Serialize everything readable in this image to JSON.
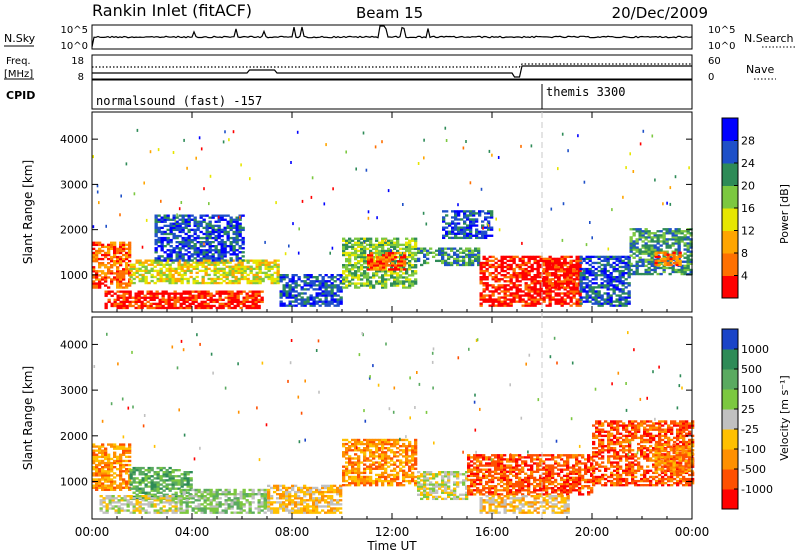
{
  "header": {
    "station": "Rankin Inlet (fitACF)",
    "beam": "Beam 15",
    "date": "20/Dec/2009"
  },
  "noise_panel": {
    "left_label": "N.Sky",
    "right_label": "N.Search",
    "left_ticks": [
      "10^5",
      "10^0"
    ],
    "right_ticks": [
      "10^5",
      "10^0"
    ]
  },
  "freq_panel": {
    "left_label_line1": "Freq.",
    "left_label_line2": "[MHz]",
    "right_label": "Nave",
    "left_ticks": [
      "18",
      "8"
    ],
    "right_ticks": [
      "60",
      "0"
    ]
  },
  "cpid_panel": {
    "label": "CPID",
    "program_1": "normalsound (fast) -157",
    "program_2": "themis 3300"
  },
  "power_colorbar": {
    "label": "Power [dB]",
    "ticks": [
      "28",
      "24",
      "20",
      "16",
      "12",
      "8",
      "4"
    ],
    "colors": [
      "#0000ff",
      "#1e50c8",
      "#2e8b57",
      "#7cc840",
      "#e6e600",
      "#ffa500",
      "#ff7000",
      "#ff0000"
    ]
  },
  "velocity_colorbar": {
    "label": "Velocity [m s⁻¹]",
    "ticks": [
      "1000",
      "500",
      "100",
      "25",
      "-25",
      "-100",
      "-500",
      "-1000"
    ],
    "colors": [
      "#1a44c8",
      "#2e8b57",
      "#5aaa60",
      "#7cc840",
      "#c0c0c0",
      "#ffc000",
      "#ff9000",
      "#ff5000",
      "#ff0000"
    ]
  },
  "chart_data": [
    {
      "type": "heatmap",
      "name": "power",
      "ylabel": "Slant Range [km]",
      "x_ticks": [
        "00:00",
        "04:00",
        "08:00",
        "12:00",
        "16:00",
        "20:00",
        "00:00"
      ],
      "y_ticks": [
        "1000",
        "2000",
        "3000",
        "4000"
      ],
      "xlim": [
        0,
        24
      ],
      "ylim": [
        180,
        4600
      ],
      "regions": [
        {
          "t0": 0.0,
          "t1": 1.5,
          "r0": 700,
          "r1": 1700,
          "level": 6
        },
        {
          "t0": 1.5,
          "t1": 7.5,
          "r0": 800,
          "r1": 1300,
          "level": 4
        },
        {
          "t0": 0.5,
          "t1": 6.8,
          "r0": 250,
          "r1": 650,
          "level": 7
        },
        {
          "t0": 2.5,
          "t1": 6.0,
          "r0": 1300,
          "r1": 2300,
          "level": 1
        },
        {
          "t0": 7.5,
          "t1": 10.0,
          "r0": 300,
          "r1": 1000,
          "level": 1
        },
        {
          "t0": 10.0,
          "t1": 13.0,
          "r0": 700,
          "r1": 1800,
          "level": 3
        },
        {
          "t0": 11.0,
          "t1": 12.5,
          "r0": 1100,
          "r1": 1500,
          "level": 6
        },
        {
          "t0": 13.0,
          "t1": 15.5,
          "r0": 1200,
          "r1": 1600,
          "level": 2
        },
        {
          "t0": 14.0,
          "t1": 16.0,
          "r0": 1800,
          "r1": 2400,
          "level": 1
        },
        {
          "t0": 15.5,
          "t1": 19.5,
          "r0": 300,
          "r1": 1400,
          "level": 7
        },
        {
          "t0": 18.0,
          "t1": 19.5,
          "r0": 700,
          "r1": 1300,
          "level": 7
        },
        {
          "t0": 19.5,
          "t1": 21.5,
          "r0": 300,
          "r1": 1400,
          "level": 1
        },
        {
          "t0": 21.5,
          "t1": 24.0,
          "r0": 1000,
          "r1": 2000,
          "level": 2
        },
        {
          "t0": 22.5,
          "t1": 23.5,
          "r0": 1200,
          "r1": 1500,
          "level": 6
        }
      ]
    },
    {
      "type": "heatmap",
      "name": "velocity",
      "ylabel": "Slant Range [km]",
      "x_ticks": [
        "00:00",
        "04:00",
        "08:00",
        "12:00",
        "16:00",
        "20:00",
        "00:00"
      ],
      "y_ticks": [
        "1000",
        "2000",
        "3000",
        "4000"
      ],
      "xlabel": "Time UT",
      "xlim": [
        0,
        24
      ],
      "ylim": [
        180,
        4600
      ],
      "regions": [
        {
          "t0": 0.0,
          "t1": 1.5,
          "r0": 800,
          "r1": 1800,
          "level": 6
        },
        {
          "t0": 1.5,
          "t1": 4.0,
          "r0": 600,
          "r1": 1300,
          "level": 2
        },
        {
          "t0": 0.3,
          "t1": 3.5,
          "r0": 300,
          "r1": 700,
          "level": 4
        },
        {
          "t0": 3.5,
          "t1": 7.0,
          "r0": 300,
          "r1": 800,
          "level": 3
        },
        {
          "t0": 7.0,
          "t1": 10.0,
          "r0": 300,
          "r1": 900,
          "level": 5
        },
        {
          "t0": 10.0,
          "t1": 13.0,
          "r0": 900,
          "r1": 1900,
          "level": 6
        },
        {
          "t0": 13.0,
          "t1": 15.0,
          "r0": 600,
          "r1": 1200,
          "level": 4
        },
        {
          "t0": 15.0,
          "t1": 20.0,
          "r0": 700,
          "r1": 1600,
          "level": 7
        },
        {
          "t0": 15.5,
          "t1": 19.0,
          "r0": 300,
          "r1": 700,
          "level": 5
        },
        {
          "t0": 20.0,
          "t1": 24.0,
          "r0": 900,
          "r1": 2300,
          "level": 7
        },
        {
          "t0": 22.5,
          "t1": 24.0,
          "r0": 1200,
          "r1": 1800,
          "level": 6
        }
      ]
    }
  ]
}
